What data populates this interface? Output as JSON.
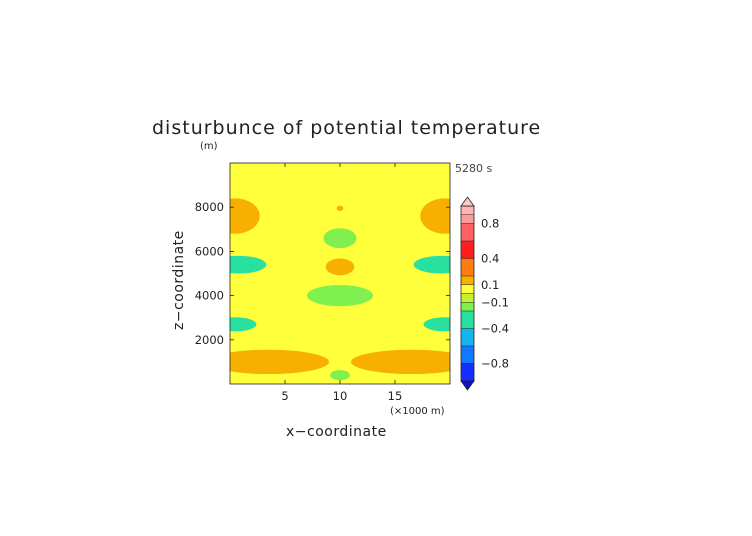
{
  "chart_data": {
    "type": "heatmap",
    "title": "disturbunce of potential temperature",
    "time_label": "5280 s",
    "xlabel": "x−coordinate",
    "x_unit": "(×1000 m)",
    "ylabel": "z−coordinate",
    "y_unit": "(m)",
    "xlim": [
      0,
      20
    ],
    "ylim": [
      0,
      10000
    ],
    "x_ticks": [
      5,
      10,
      15
    ],
    "x_tick_labels": [
      "5",
      "10",
      "15"
    ],
    "y_ticks": [
      2000,
      4000,
      6000,
      8000
    ],
    "y_tick_labels": [
      "2000",
      "4000",
      "6000",
      "8000"
    ],
    "background_level": "0 to 0.1 (yellow)",
    "colorbar": {
      "tick_labels": [
        "0.8",
        "0.4",
        "0.1",
        "−0.1",
        "−0.4",
        "−0.8"
      ],
      "tick_values": [
        0.8,
        0.4,
        0.1,
        -0.1,
        -0.4,
        -0.8
      ],
      "levels": [
        {
          "lo": 0.9,
          "hi": 1.0,
          "color": "#ffb4b4"
        },
        {
          "lo": 0.8,
          "hi": 0.9,
          "color": "#ff9a9a"
        },
        {
          "lo": 0.6,
          "hi": 0.8,
          "color": "#ff6060"
        },
        {
          "lo": 0.4,
          "hi": 0.6,
          "color": "#ff1e1e"
        },
        {
          "lo": 0.2,
          "hi": 0.4,
          "color": "#ff7c10"
        },
        {
          "lo": 0.1,
          "hi": 0.2,
          "color": "#f8b000"
        },
        {
          "lo": 0.0,
          "hi": 0.1,
          "color": "#ffff3c"
        },
        {
          "lo": -0.1,
          "hi": 0.0,
          "color": "#c8f028"
        },
        {
          "lo": -0.2,
          "hi": -0.1,
          "color": "#80f050"
        },
        {
          "lo": -0.4,
          "hi": -0.2,
          "color": "#28e0a0"
        },
        {
          "lo": -0.6,
          "hi": -0.4,
          "color": "#14b4f0"
        },
        {
          "lo": -0.8,
          "hi": -0.6,
          "color": "#1478ff"
        },
        {
          "lo": -1.0,
          "hi": -0.8,
          "color": "#1430ff"
        }
      ],
      "over_color": "#ffc8c8",
      "under_color": "#1010c8"
    },
    "regions": [
      {
        "label": "warm anomaly left upper",
        "color": "#f8b000",
        "cx": 0.5,
        "cz": 7600,
        "rx": 2.2,
        "rz": 800
      },
      {
        "label": "warm anomaly right upper",
        "color": "#f8b000",
        "cx": 19.5,
        "cz": 7600,
        "rx": 2.2,
        "rz": 800
      },
      {
        "label": "small warm spot top",
        "color": "#f8b000",
        "cx": 10,
        "cz": 7950,
        "rx": 0.3,
        "rz": 120
      },
      {
        "label": "warm lobe center",
        "color": "#f8b000",
        "cx": 10,
        "cz": 5300,
        "rx": 1.3,
        "rz": 380
      },
      {
        "label": "warm band lower left",
        "color": "#f8b000",
        "cx": 3.5,
        "cz": 1000,
        "rx": 5.5,
        "rz": 550
      },
      {
        "label": "warm band lower right",
        "color": "#f8b000",
        "cx": 16.5,
        "cz": 1000,
        "rx": 5.5,
        "rz": 550
      },
      {
        "label": "cool lobe center",
        "color": "#80f050",
        "cx": 10,
        "cz": 4000,
        "rx": 3.0,
        "rz": 480
      },
      {
        "label": "cool lobe upper center",
        "color": "#80f050",
        "cx": 10,
        "cz": 6600,
        "rx": 1.5,
        "rz": 450
      },
      {
        "label": "cool spot bottom",
        "color": "#80f050",
        "cx": 10,
        "cz": 400,
        "rx": 0.9,
        "rz": 230
      },
      {
        "label": "cold spot left mid",
        "color": "#28e0a0",
        "cx": 0.8,
        "cz": 5400,
        "rx": 2.5,
        "rz": 400
      },
      {
        "label": "cold spot right mid",
        "color": "#28e0a0",
        "cx": 19.2,
        "cz": 5400,
        "rx": 2.5,
        "rz": 400
      },
      {
        "label": "cold spot left low",
        "color": "#28e0a0",
        "cx": 0.5,
        "cz": 2700,
        "rx": 1.9,
        "rz": 320
      },
      {
        "label": "cold spot right low",
        "color": "#28e0a0",
        "cx": 19.5,
        "cz": 2700,
        "rx": 1.9,
        "rz": 320
      }
    ]
  }
}
